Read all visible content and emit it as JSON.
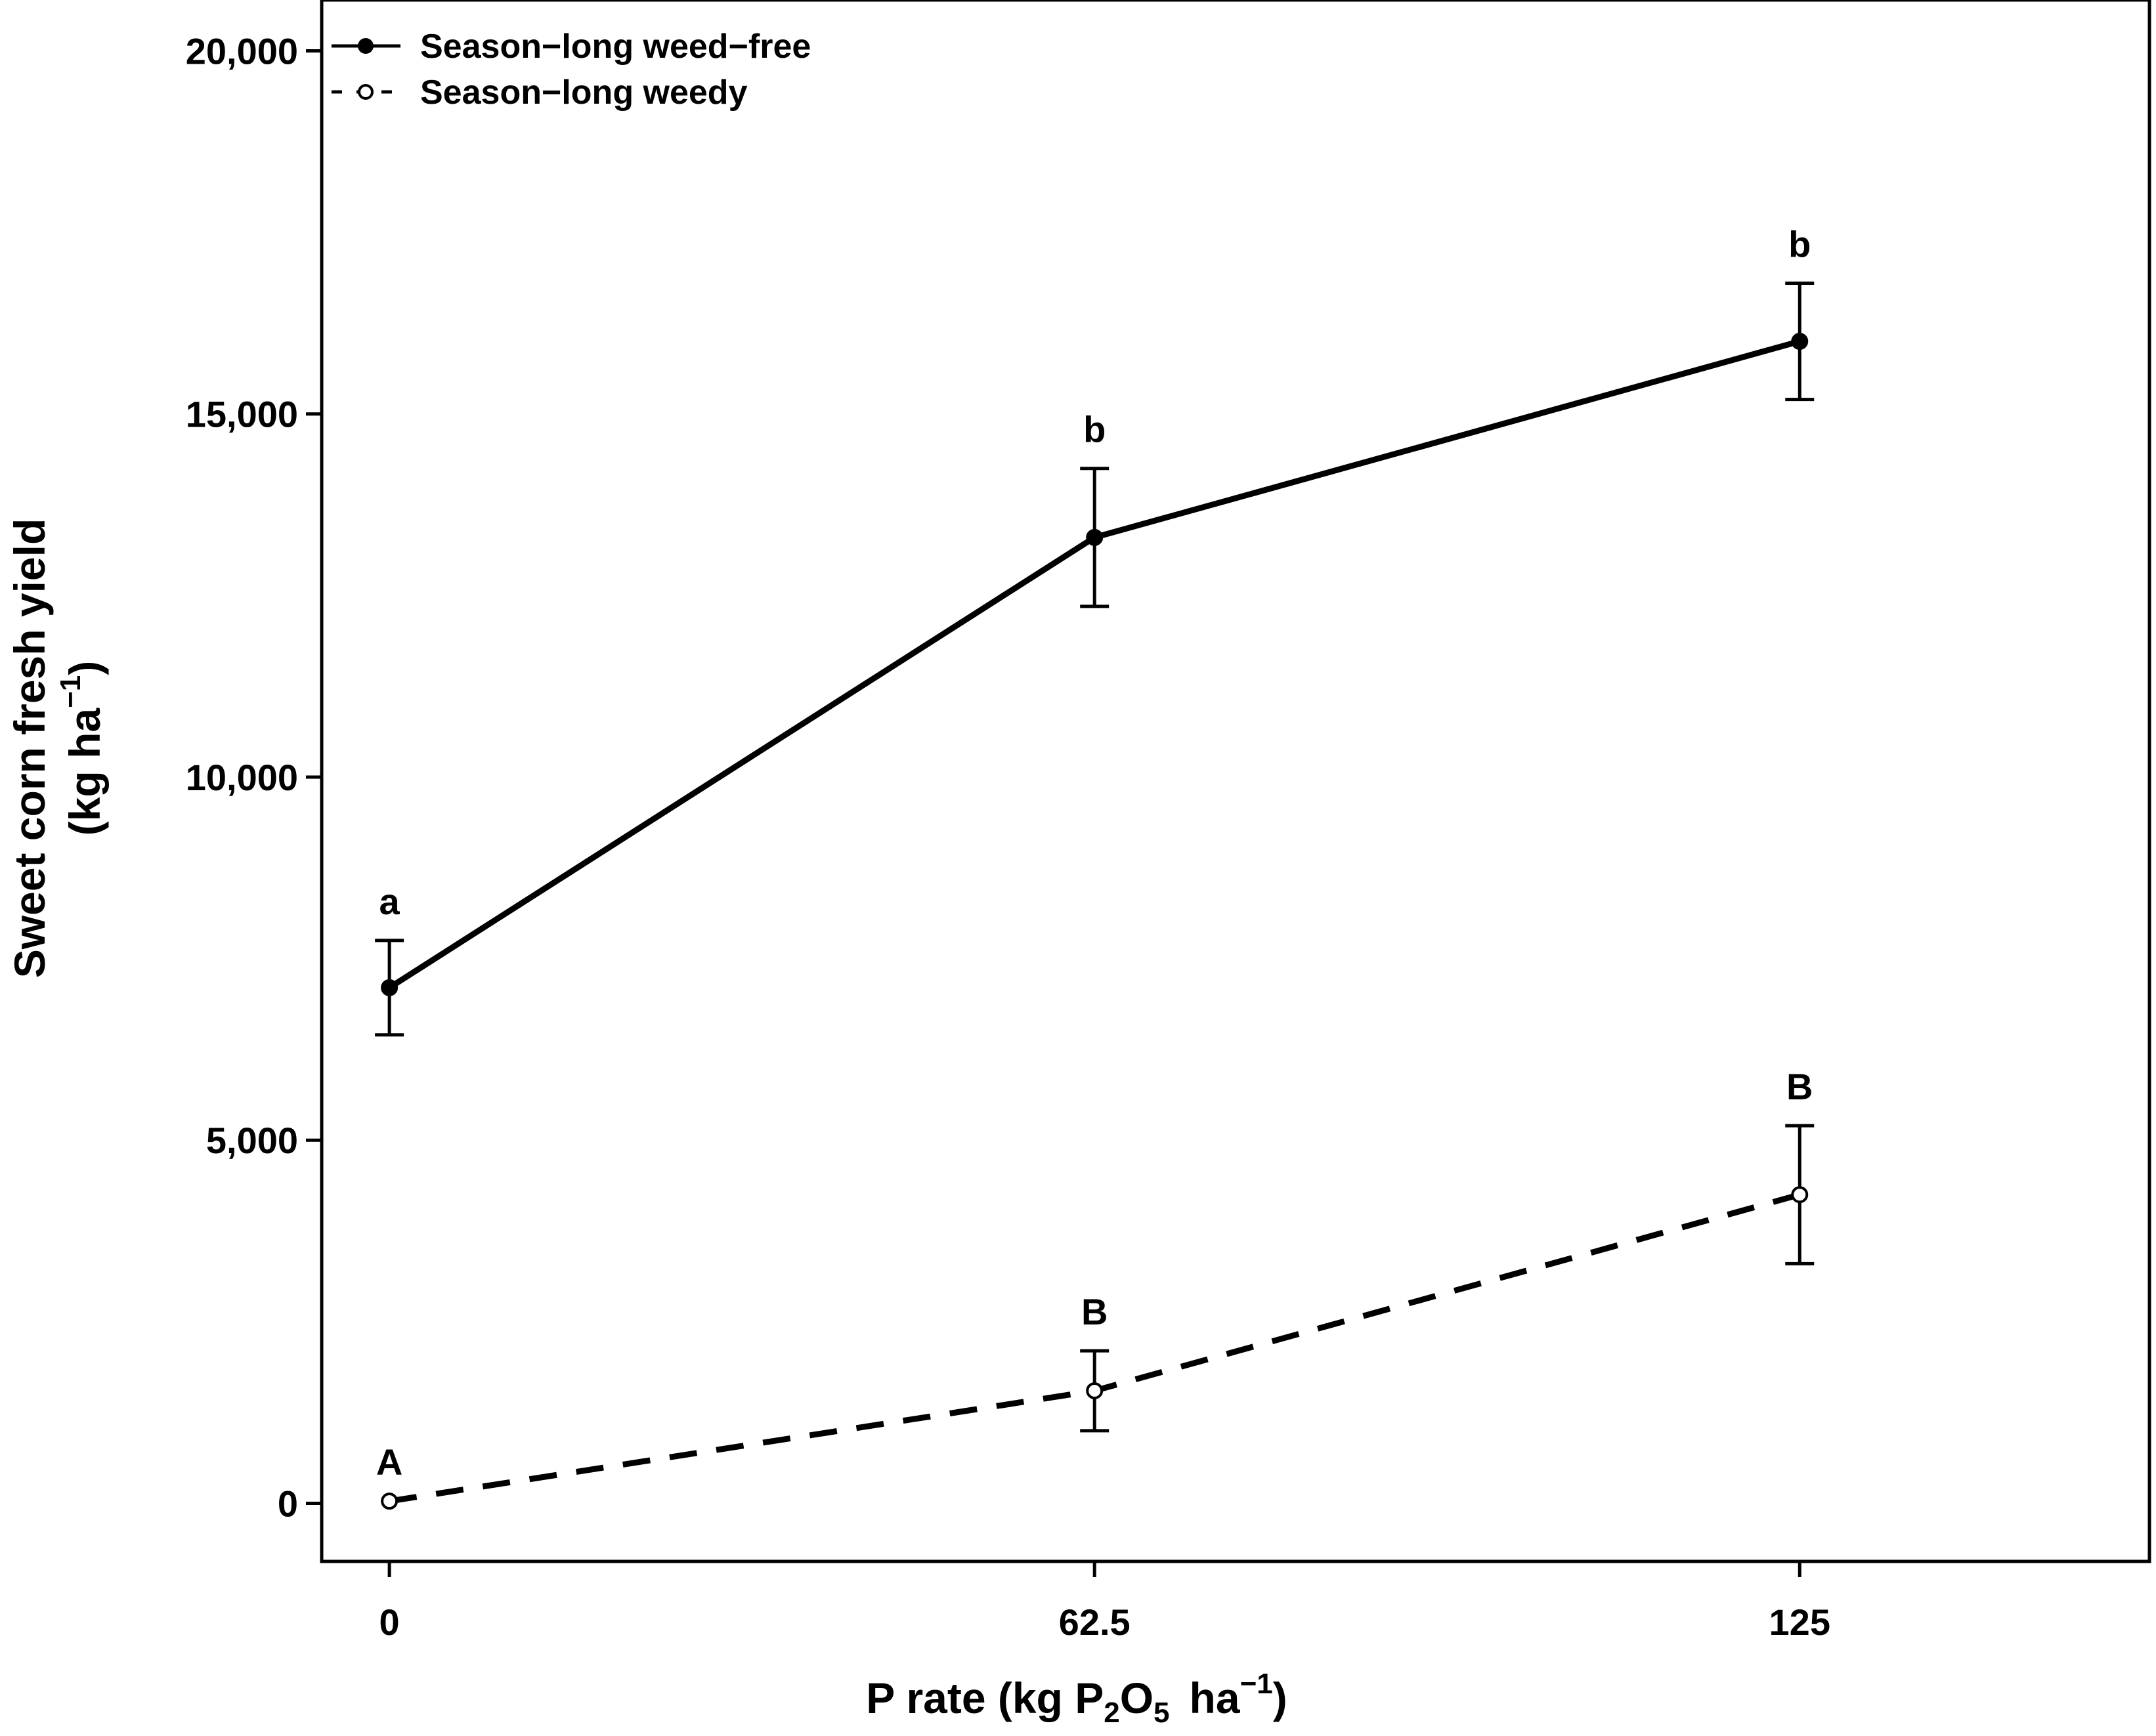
{
  "chart_data": {
    "type": "line",
    "x": [
      0,
      62.5,
      125
    ],
    "x_tick_labels": [
      "0",
      "62.5",
      "125"
    ],
    "xlim": [
      -6,
      156
    ],
    "ylim": [
      -800,
      20700
    ],
    "y_ticks": [
      0,
      5000,
      10000,
      15000,
      20000
    ],
    "y_tick_labels": [
      "0",
      "5,000",
      "10,000",
      "15,000",
      "20,000"
    ],
    "xlabel": {
      "main": "P rate (kg P",
      "sub1": "2",
      "mid": "O",
      "sub2": "5",
      "tail": "ha",
      "sup": "−1",
      "close": ")"
    },
    "ylabel": {
      "line1": "Sweet corn fresh yield",
      "line2_main": "(kg ha",
      "line2_sup": "−1",
      "line2_close": ")"
    },
    "legend_position": "top-left",
    "grid": false,
    "series": [
      {
        "name": "Season−long weed−free",
        "style": "solid",
        "marker": "filled-circle",
        "color": "#000000",
        "values": [
          7100,
          13300,
          16000
        ],
        "error": [
          650,
          950,
          800
        ],
        "letters": [
          "a",
          "b",
          "b"
        ]
      },
      {
        "name": "Season−long weedy",
        "style": "dashed",
        "marker": "open-circle",
        "color": "#000000",
        "values": [
          30,
          1550,
          4250
        ],
        "error": [
          0,
          550,
          950
        ],
        "letters": [
          "A",
          "B",
          "B"
        ]
      }
    ]
  }
}
